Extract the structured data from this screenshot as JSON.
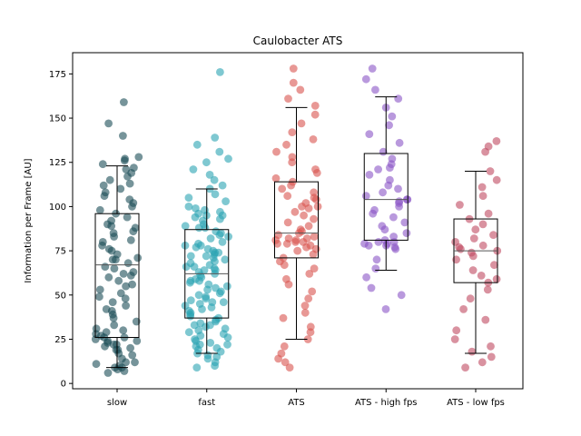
{
  "chart_data": {
    "type": "scatter",
    "title": "Caulobacter ATS",
    "xlabel": "",
    "ylabel": "Information per Frame [AU]",
    "ylim": [
      -3,
      187
    ],
    "yticks": [
      0,
      25,
      50,
      75,
      100,
      125,
      150,
      175
    ],
    "grid": false,
    "categories": [
      "slow",
      "fast",
      "ATS",
      "ATS - high fps",
      "ATS - low fps"
    ],
    "series": [
      {
        "category": "slow",
        "color": "#1a4c57",
        "box": {
          "whisker_low": 9,
          "q1": 26,
          "median": 67,
          "q3": 96,
          "whisker_high": 123
        },
        "points": [
          159,
          147,
          140,
          128,
          127,
          126,
          124,
          122,
          121,
          119,
          117,
          115,
          113,
          112,
          110,
          108,
          106,
          104,
          102,
          100,
          98,
          96,
          94,
          92,
          90,
          89,
          88,
          86,
          85,
          83,
          81,
          80,
          78,
          76,
          75,
          73,
          71,
          70,
          68,
          66,
          65,
          63,
          61,
          60,
          58,
          56,
          55,
          53,
          51,
          49,
          48,
          46,
          44,
          42,
          41,
          39,
          37,
          35,
          33,
          31,
          29,
          27,
          26,
          25,
          24,
          23,
          22,
          21,
          20,
          19,
          17,
          16,
          14,
          12,
          11,
          10,
          9,
          8,
          7,
          6,
          22,
          24,
          26,
          19,
          12,
          9,
          28,
          30,
          62,
          70
        ]
      },
      {
        "category": "fast",
        "color": "#2aa3b3",
        "box": {
          "whisker_low": 17,
          "q1": 37,
          "median": 62,
          "q3": 87,
          "whisker_high": 110
        },
        "points": [
          176,
          139,
          135,
          131,
          127,
          125,
          121,
          118,
          115,
          112,
          110,
          107,
          105,
          103,
          100,
          99,
          98,
          97,
          96,
          95,
          94,
          93,
          92,
          90,
          89,
          88,
          86,
          85,
          84,
          83,
          82,
          80,
          79,
          78,
          77,
          76,
          75,
          74,
          73,
          72,
          71,
          70,
          69,
          68,
          67,
          66,
          65,
          64,
          63,
          62,
          61,
          60,
          59,
          58,
          57,
          56,
          55,
          54,
          53,
          52,
          51,
          50,
          49,
          48,
          47,
          46,
          45,
          44,
          43,
          42,
          41,
          40,
          39,
          38,
          37,
          36,
          35,
          34,
          33,
          32,
          31,
          30,
          29,
          28,
          27,
          26,
          25,
          24,
          23,
          22,
          21,
          20,
          19,
          18,
          17,
          16,
          15,
          14,
          12,
          10,
          9,
          72,
          74,
          66,
          58,
          95,
          88,
          78,
          64,
          46,
          33,
          22
        ]
      },
      {
        "category": "ATS",
        "color": "#d9534f",
        "box": {
          "whisker_low": 25,
          "q1": 71,
          "median": 85,
          "q3": 114,
          "whisker_high": 156
        },
        "points": [
          178,
          170,
          166,
          161,
          157,
          152,
          147,
          142,
          138,
          135,
          131,
          128,
          125,
          121,
          119,
          116,
          114,
          112,
          110,
          108,
          106,
          104,
          102,
          100,
          99,
          97,
          95,
          93,
          91,
          89,
          87,
          86,
          85,
          84,
          83,
          82,
          81,
          80,
          79,
          78,
          77,
          76,
          75,
          73,
          71,
          69,
          67,
          65,
          62,
          59,
          56,
          52,
          48,
          44,
          40,
          37,
          32,
          29,
          25,
          21,
          17,
          14,
          12,
          9,
          80,
          81,
          79,
          82,
          100,
          105
        ]
      },
      {
        "category": "ATS - high fps",
        "color": "#8a55c7",
        "box": {
          "whisker_low": 64,
          "q1": 81,
          "median": 104,
          "q3": 130,
          "whisker_high": 162
        },
        "points": [
          178,
          172,
          166,
          161,
          156,
          151,
          146,
          141,
          136,
          131,
          127,
          124,
          121,
          118,
          115,
          112,
          110,
          108,
          106,
          104,
          102,
          100,
          98,
          96,
          94,
          91,
          89,
          87,
          85,
          83,
          81,
          80,
          79,
          78,
          77,
          76,
          70,
          65,
          60,
          54,
          50,
          42,
          80,
          79,
          78,
          104,
          103,
          122
        ]
      },
      {
        "category": "ATS - low fps",
        "color": "#c04a60",
        "box": {
          "whisker_low": 17,
          "q1": 57,
          "median": 75,
          "q3": 93,
          "whisker_high": 120
        },
        "points": [
          137,
          134,
          131,
          120,
          115,
          111,
          106,
          101,
          96,
          93,
          90,
          87,
          84,
          82,
          80,
          78,
          77,
          76,
          75,
          74,
          72,
          70,
          67,
          64,
          61,
          59,
          57,
          53,
          48,
          42,
          36,
          30,
          25,
          21,
          18,
          15,
          12,
          9
        ]
      }
    ]
  }
}
